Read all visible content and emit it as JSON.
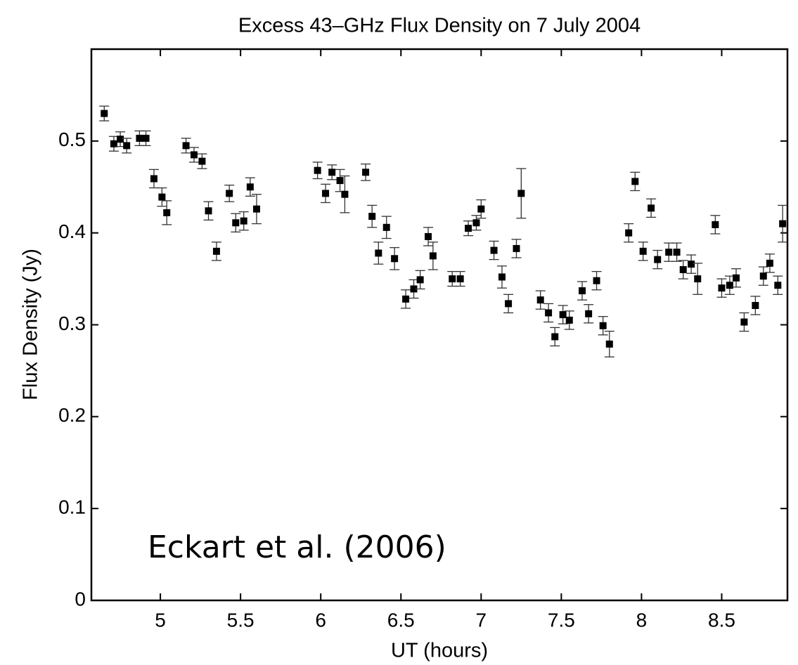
{
  "chart_data": {
    "type": "scatter",
    "title": "Excess 43–GHz Flux Density on 7 July 2004",
    "xlabel": "UT (hours)",
    "ylabel": "Flux Density (Jy)",
    "annotation": "Eckart et al. (2006)",
    "color": "#000000",
    "x": [
      4.65,
      4.71,
      4.75,
      4.79,
      4.87,
      4.91,
      4.96,
      5.01,
      5.04,
      5.16,
      5.21,
      5.26,
      5.3,
      5.35,
      5.43,
      5.47,
      5.52,
      5.56,
      5.6,
      5.98,
      6.03,
      6.07,
      6.12,
      6.15,
      6.28,
      6.32,
      6.36,
      6.41,
      6.46,
      6.53,
      6.58,
      6.62,
      6.67,
      6.7,
      6.82,
      6.87,
      6.92,
      6.97,
      7.0,
      7.08,
      7.13,
      7.17,
      7.22,
      7.25,
      7.37,
      7.42,
      7.46,
      7.51,
      7.55,
      7.63,
      7.67,
      7.72,
      7.76,
      7.8,
      7.92,
      7.96,
      8.01,
      8.06,
      8.1,
      8.17,
      8.22,
      8.26,
      8.31,
      8.35,
      8.46,
      8.5,
      8.55,
      8.59,
      8.64,
      8.71,
      8.76,
      8.8,
      8.85,
      8.88
    ],
    "values": [
      0.53,
      0.497,
      0.502,
      0.495,
      0.503,
      0.503,
      0.459,
      0.439,
      0.422,
      0.495,
      0.485,
      0.478,
      0.424,
      0.38,
      0.443,
      0.411,
      0.413,
      0.45,
      0.426,
      0.468,
      0.443,
      0.466,
      0.457,
      0.442,
      0.466,
      0.418,
      0.378,
      0.406,
      0.372,
      0.328,
      0.339,
      0.349,
      0.396,
      0.375,
      0.35,
      0.35,
      0.405,
      0.411,
      0.426,
      0.381,
      0.352,
      0.323,
      0.383,
      0.443,
      0.327,
      0.313,
      0.287,
      0.311,
      0.305,
      0.337,
      0.312,
      0.348,
      0.299,
      0.279,
      0.4,
      0.456,
      0.38,
      0.427,
      0.371,
      0.379,
      0.379,
      0.36,
      0.366,
      0.35,
      0.409,
      0.34,
      0.343,
      0.351,
      0.303,
      0.321,
      0.353,
      0.367,
      0.343,
      0.41
    ],
    "errors": [
      0.008,
      0.008,
      0.008,
      0.008,
      0.008,
      0.008,
      0.01,
      0.01,
      0.013,
      0.008,
      0.008,
      0.008,
      0.01,
      0.01,
      0.009,
      0.01,
      0.01,
      0.01,
      0.016,
      0.009,
      0.01,
      0.008,
      0.012,
      0.02,
      0.009,
      0.012,
      0.012,
      0.012,
      0.012,
      0.01,
      0.01,
      0.01,
      0.01,
      0.015,
      0.008,
      0.008,
      0.008,
      0.008,
      0.01,
      0.01,
      0.012,
      0.01,
      0.01,
      0.027,
      0.01,
      0.01,
      0.01,
      0.01,
      0.01,
      0.01,
      0.01,
      0.01,
      0.01,
      0.014,
      0.01,
      0.01,
      0.01,
      0.01,
      0.01,
      0.01,
      0.01,
      0.01,
      0.01,
      0.017,
      0.01,
      0.01,
      0.01,
      0.01,
      0.01,
      0.01,
      0.01,
      0.01,
      0.01,
      0.02
    ],
    "xlim": [
      4.57,
      8.91
    ],
    "xticks": [
      5,
      5.5,
      6,
      6.5,
      7,
      7.5,
      8,
      8.5
    ],
    "ylim": [
      0,
      0.6
    ],
    "yticks": [
      0,
      0.1,
      0.2,
      0.3,
      0.4,
      0.5
    ]
  }
}
